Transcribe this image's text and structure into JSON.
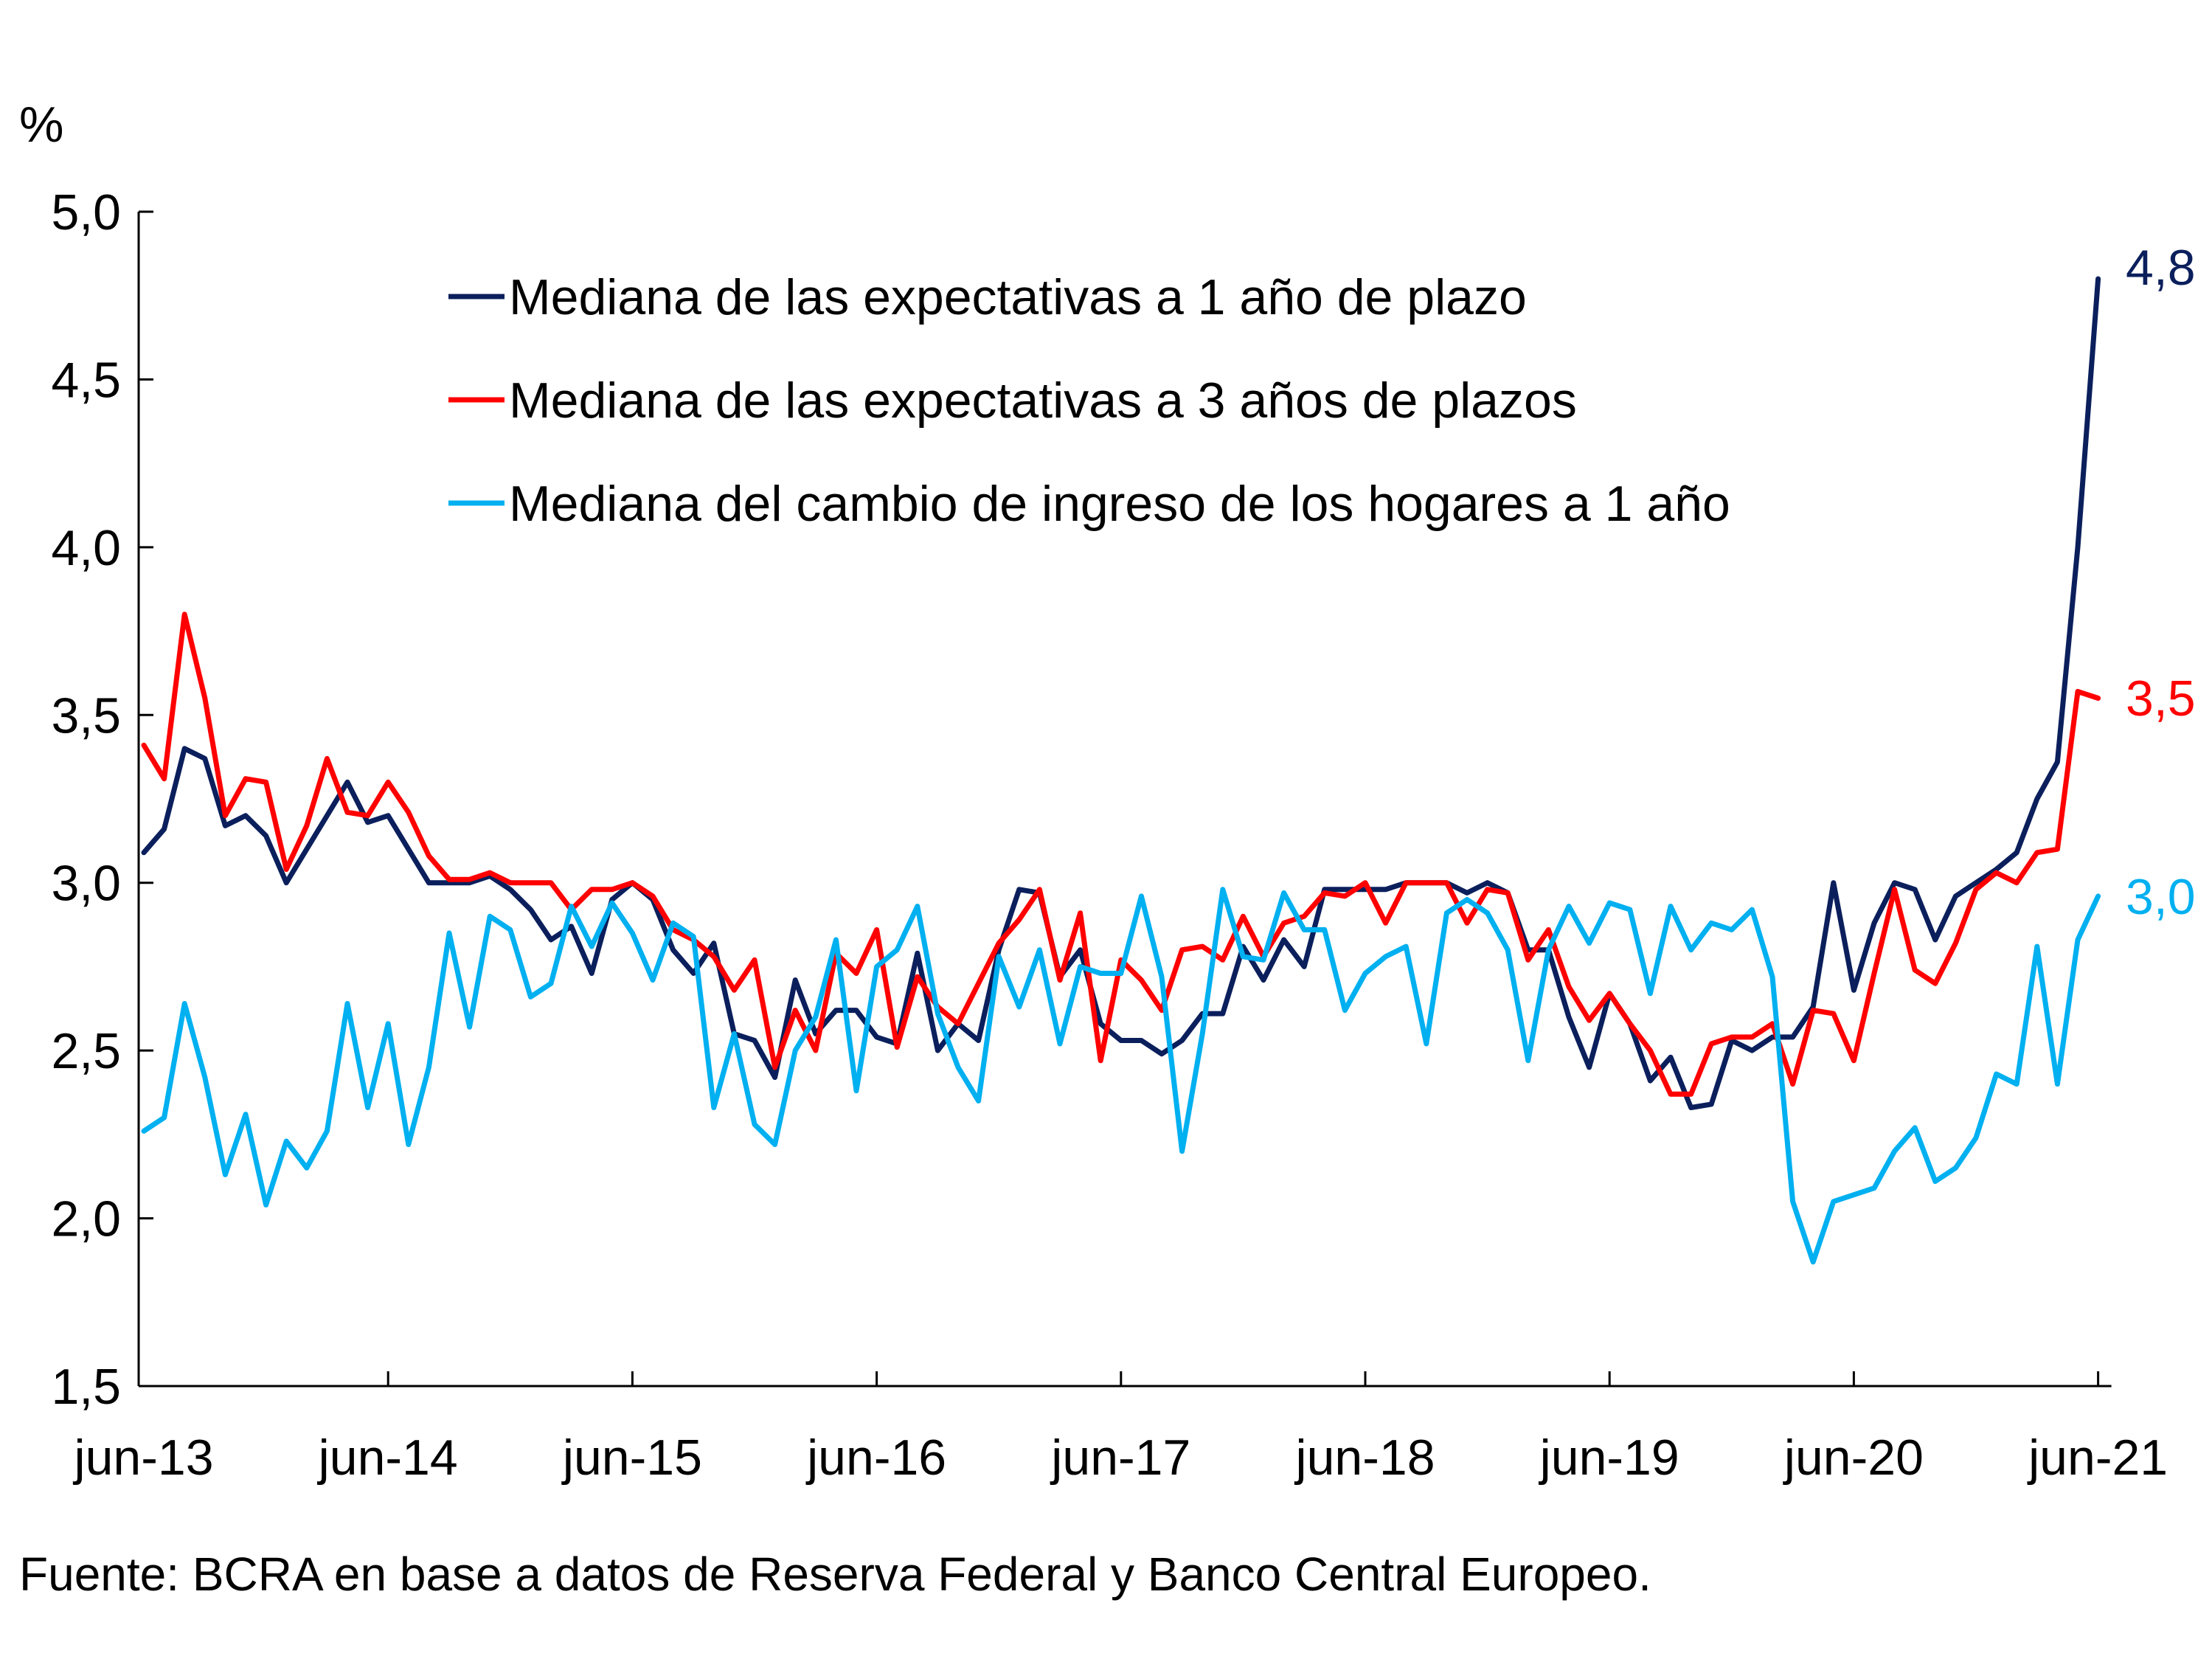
{
  "chart_data": {
    "type": "line",
    "title": "",
    "ylabel": "%",
    "xlabel": "",
    "ylim": [
      1.5,
      5.0
    ],
    "yticks": [
      "1,5",
      "2,0",
      "2,5",
      "3,0",
      "3,5",
      "4,0",
      "4,5",
      "5,0"
    ],
    "ytick_values": [
      1.5,
      2.0,
      2.5,
      3.0,
      3.5,
      4.0,
      4.5,
      5.0
    ],
    "xticks": [
      "jun-13",
      "jun-14",
      "jun-15",
      "jun-16",
      "jun-17",
      "jun-18",
      "jun-19",
      "jun-20",
      "jun-21"
    ],
    "x_start": "2013-06",
    "x_end": "2021-06",
    "x_frequency": "monthly",
    "grid": false,
    "legend_placement": "top-center",
    "series": [
      {
        "name": "Mediana de las expectativas a 1 año de plazo",
        "color": "#0b1f5c",
        "end_label": "4,8",
        "values": [
          3.09,
          3.16,
          3.4,
          3.37,
          3.17,
          3.2,
          3.14,
          3.0,
          3.1,
          3.2,
          3.3,
          3.18,
          3.2,
          3.1,
          3.0,
          3.0,
          3.0,
          3.02,
          2.98,
          2.92,
          2.83,
          2.87,
          2.73,
          2.95,
          3.0,
          2.95,
          2.8,
          2.73,
          2.82,
          2.55,
          2.53,
          2.42,
          2.71,
          2.55,
          2.62,
          2.62,
          2.54,
          2.52,
          2.79,
          2.5,
          2.58,
          2.53,
          2.8,
          2.98,
          2.97,
          2.72,
          2.8,
          2.58,
          2.53,
          2.53,
          2.49,
          2.53,
          2.61,
          2.61,
          2.81,
          2.71,
          2.83,
          2.75,
          2.98,
          2.98,
          2.98,
          2.98,
          3.0,
          3.0,
          3.0,
          2.97,
          3.0,
          2.97,
          2.8,
          2.8,
          2.6,
          2.45,
          2.67,
          2.58,
          2.41,
          2.48,
          2.33,
          2.34,
          2.53,
          2.5,
          2.54,
          2.54,
          2.63,
          3.0,
          2.68,
          2.88,
          3.0,
          2.98,
          2.83,
          2.96,
          3.0,
          3.04,
          3.09,
          3.25,
          3.36,
          4.0,
          4.8
        ]
      },
      {
        "name": "Mediana de las expectativas a 3 años de plazos",
        "color": "#ff0000",
        "end_label": "3,5",
        "values": [
          3.41,
          3.31,
          3.8,
          3.55,
          3.2,
          3.31,
          3.3,
          3.04,
          3.17,
          3.37,
          3.21,
          3.2,
          3.3,
          3.21,
          3.08,
          3.01,
          3.01,
          3.03,
          3.0,
          3.0,
          3.0,
          2.92,
          2.98,
          2.98,
          3.0,
          2.96,
          2.86,
          2.83,
          2.78,
          2.68,
          2.77,
          2.45,
          2.62,
          2.5,
          2.79,
          2.73,
          2.86,
          2.51,
          2.72,
          2.63,
          2.58,
          2.7,
          2.82,
          2.89,
          2.98,
          2.71,
          2.91,
          2.47,
          2.77,
          2.71,
          2.62,
          2.8,
          2.81,
          2.77,
          2.9,
          2.78,
          2.88,
          2.9,
          2.97,
          2.96,
          3.0,
          2.88,
          3.0,
          3.0,
          3.0,
          2.88,
          2.98,
          2.97,
          2.77,
          2.86,
          2.69,
          2.59,
          2.67,
          2.58,
          2.5,
          2.37,
          2.37,
          2.52,
          2.54,
          2.54,
          2.58,
          2.4,
          2.62,
          2.61,
          2.47,
          2.73,
          2.98,
          2.74,
          2.7,
          2.82,
          2.98,
          3.03,
          3.0,
          3.09,
          3.1,
          3.57,
          3.55
        ]
      },
      {
        "name": "Mediana del cambio de ingreso de los hogares a 1 año",
        "color": "#00b0f0",
        "end_label": "3,0",
        "values": [
          2.26,
          2.3,
          2.64,
          2.42,
          2.13,
          2.31,
          2.04,
          2.23,
          2.15,
          2.26,
          2.64,
          2.33,
          2.58,
          2.22,
          2.45,
          2.85,
          2.57,
          2.9,
          2.86,
          2.66,
          2.7,
          2.93,
          2.81,
          2.94,
          2.85,
          2.71,
          2.88,
          2.84,
          2.33,
          2.55,
          2.28,
          2.22,
          2.5,
          2.6,
          2.83,
          2.38,
          2.75,
          2.8,
          2.93,
          2.61,
          2.45,
          2.35,
          2.78,
          2.63,
          2.8,
          2.52,
          2.75,
          2.73,
          2.73,
          2.96,
          2.72,
          2.2,
          2.55,
          2.98,
          2.78,
          2.77,
          2.97,
          2.86,
          2.86,
          2.62,
          2.73,
          2.78,
          2.81,
          2.52,
          2.91,
          2.95,
          2.91,
          2.8,
          2.47,
          2.8,
          2.93,
          2.82,
          2.94,
          2.92,
          2.67,
          2.93,
          2.8,
          2.88,
          2.86,
          2.92,
          2.72,
          2.05,
          1.87,
          2.05,
          2.07,
          2.09,
          2.2,
          2.27,
          2.11,
          2.15,
          2.24,
          2.43,
          2.4,
          2.81,
          2.4,
          2.83,
          2.96
        ]
      }
    ]
  },
  "source": "Fuente: BCRA en base a datos de Reserva Federal y Banco Central Europeo."
}
